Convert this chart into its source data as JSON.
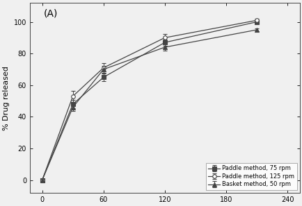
{
  "title": "(A)",
  "xlabel": "",
  "ylabel": "% Drug released",
  "xlim": [
    -12,
    252
  ],
  "ylim": [
    -8,
    112
  ],
  "xticks": [
    0,
    60,
    120,
    180,
    240
  ],
  "yticks": [
    0,
    20,
    40,
    60,
    80,
    100
  ],
  "background_color": "#f0f0f0",
  "series": [
    {
      "label": "Paddle method, 75 rpm",
      "x": [
        0,
        30,
        60,
        120,
        210
      ],
      "y": [
        0,
        48,
        65,
        87,
        100
      ],
      "yerr": [
        0.5,
        2.5,
        2.5,
        2.0,
        0.8
      ],
      "color": "#444444",
      "marker": "s",
      "markersize": 4,
      "linestyle": "-",
      "fillstyle": "full"
    },
    {
      "label": "Paddle method, 125 rpm",
      "x": [
        0,
        30,
        60,
        120,
        210
      ],
      "y": [
        0,
        53,
        71,
        90,
        101
      ],
      "yerr": [
        0.5,
        3.5,
        3.0,
        2.5,
        0.8
      ],
      "color": "#444444",
      "marker": "o",
      "markersize": 4,
      "linestyle": "-",
      "fillstyle": "none"
    },
    {
      "label": "Basket method, 50 rpm",
      "x": [
        0,
        30,
        60,
        120,
        210
      ],
      "y": [
        0,
        46,
        70,
        84,
        95
      ],
      "yerr": [
        0.5,
        2.5,
        2.0,
        2.0,
        1.0
      ],
      "color": "#444444",
      "marker": "^",
      "markersize": 4,
      "linestyle": "-",
      "fillstyle": "full"
    }
  ],
  "legend_loc": "lower right",
  "legend_fontsize": 6,
  "axis_label_fontsize": 8,
  "tick_fontsize": 7,
  "panel_label": "(A)",
  "panel_label_fontsize": 10
}
